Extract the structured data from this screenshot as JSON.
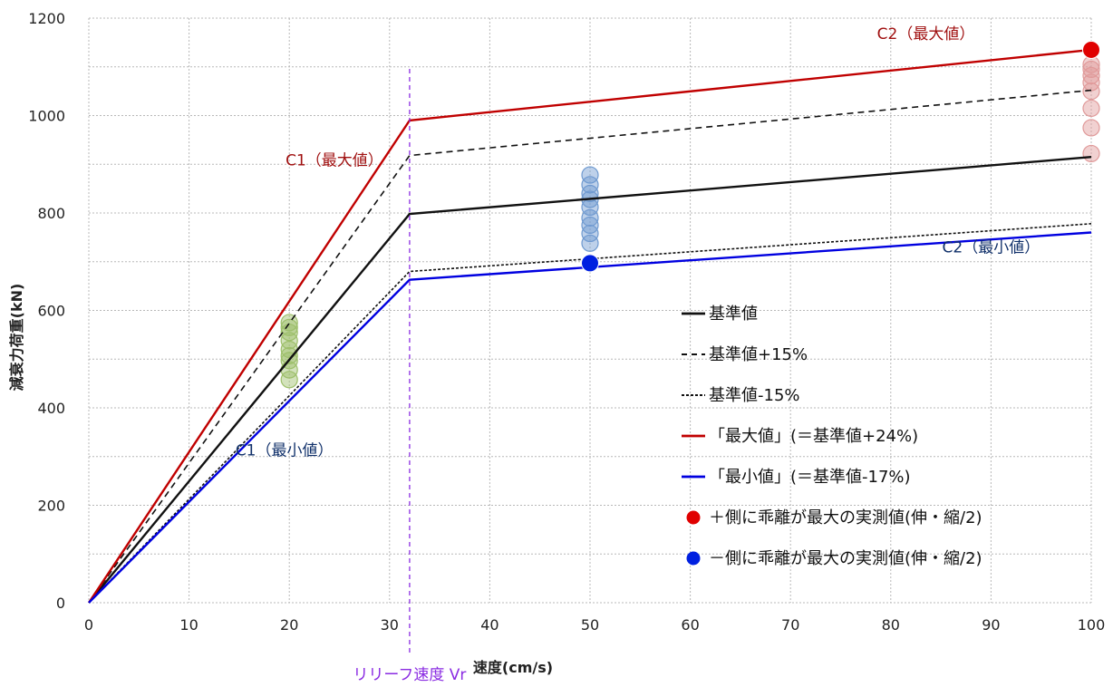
{
  "chart_data": {
    "type": "line",
    "title": "",
    "xlabel": "速度(cm/s)",
    "ylabel": "減衰力荷重(kN)",
    "xlim": [
      0,
      100
    ],
    "ylim": [
      0,
      1200
    ],
    "x_ticks": [
      "0",
      "10",
      "20",
      "30",
      "40",
      "50",
      "60",
      "70",
      "80",
      "90",
      "100"
    ],
    "y_ticks": [
      "0",
      "200",
      "400",
      "600",
      "800",
      "1000",
      "1200"
    ],
    "grid": true,
    "legend_position": "bottom-right",
    "series": [
      {
        "name": "基準値",
        "color": "#111111",
        "style": "solid",
        "points": [
          [
            0,
            0
          ],
          [
            32,
            798
          ],
          [
            100,
            915
          ]
        ]
      },
      {
        "name": "基準値+15%",
        "color": "#111111",
        "style": "dashed",
        "points": [
          [
            0,
            0
          ],
          [
            32,
            918
          ],
          [
            100,
            1052
          ]
        ]
      },
      {
        "name": "基準値-15%",
        "color": "#111111",
        "style": "dotted",
        "points": [
          [
            0,
            0
          ],
          [
            32,
            680
          ],
          [
            100,
            778
          ]
        ]
      },
      {
        "name": "「最大値」(＝基準値+24%)",
        "color": "#c00000",
        "style": "solid",
        "points": [
          [
            0,
            0
          ],
          [
            32,
            990
          ],
          [
            100,
            1135
          ]
        ]
      },
      {
        "name": "「最小値」(＝基準値-17%)",
        "color": "#0000e0",
        "style": "solid",
        "points": [
          [
            0,
            0
          ],
          [
            32,
            663
          ],
          [
            100,
            760
          ]
        ]
      }
    ],
    "markers": [
      {
        "name": "＋側に乖離が最大の実測値(伸・縮/2)",
        "color": "#e00000",
        "points": [
          [
            100,
            1135
          ]
        ]
      },
      {
        "name": "－側に乖離が最大の実測値(伸・縮/2)",
        "color": "#0020e0",
        "points": [
          [
            50,
            697
          ]
        ]
      }
    ],
    "measurements": [
      {
        "color": "#9dbf6a",
        "x": 20,
        "y": [
          458,
          478,
          497,
          507,
          520,
          538,
          555,
          565,
          575
        ]
      },
      {
        "color": "#6f9ad0",
        "x": 50,
        "y": [
          738,
          758,
          775,
          790,
          812,
          828,
          840,
          858,
          878
        ]
      },
      {
        "color": "#e09a9a",
        "x": 100,
        "y": [
          922,
          975,
          1015,
          1050,
          1068,
          1082,
          1095,
          1105
        ]
      }
    ],
    "relief_line": {
      "x": 32,
      "label": "リリーフ速度 Vr",
      "color": "#8a2be2"
    },
    "annotations": [
      {
        "text": "C1（最大値）",
        "x": 24.5,
        "y": 875,
        "color": "#a01010"
      },
      {
        "text": "C1（最小値）",
        "x": 19.5,
        "y": 280,
        "color": "#10306a"
      },
      {
        "text": "C2（最大値）",
        "x": 83.5,
        "y": 1135,
        "color": "#a01010"
      },
      {
        "text": "C2（最小値）",
        "x": 90,
        "y": 697,
        "color": "#10306a"
      }
    ]
  }
}
